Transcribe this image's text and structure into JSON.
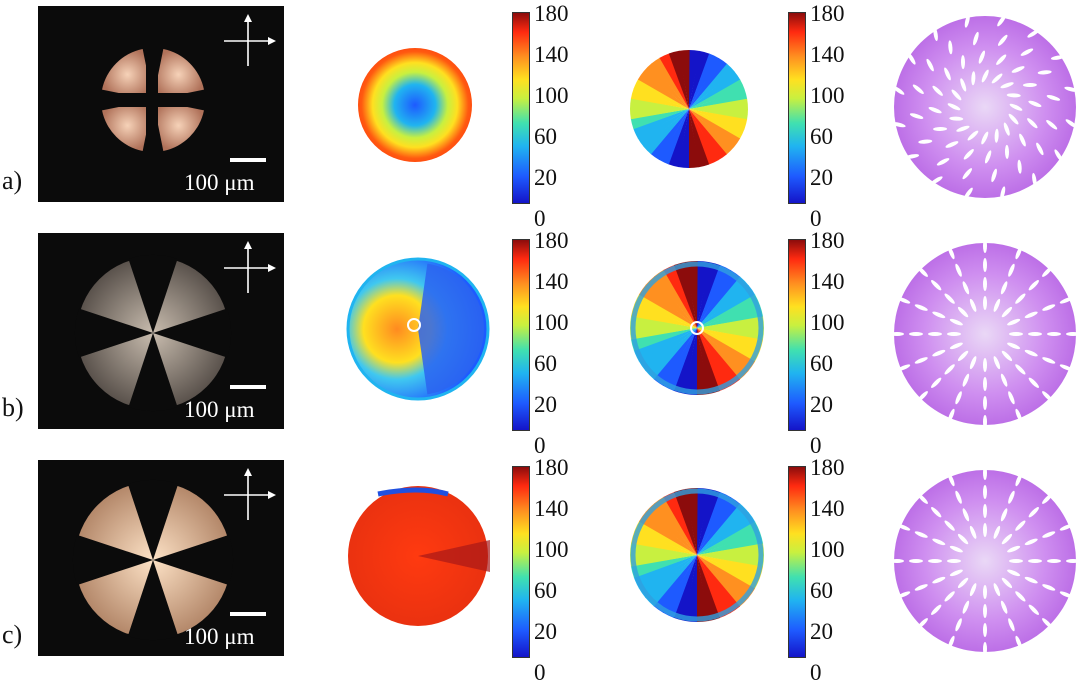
{
  "rows": [
    {
      "label": "a)",
      "scale": "100 μm"
    },
    {
      "label": "b)",
      "scale": "100 μm"
    },
    {
      "label": "c)",
      "scale": "100 μm"
    }
  ],
  "colorbar_ticks": [
    "180",
    "140",
    "100",
    "60",
    "20",
    "0"
  ],
  "colors": {
    "background": "#ffffff",
    "micrograph_bg": "#0b0b0b",
    "schematic_fill": "#c57ae8",
    "schematic_dash": "#ffffff",
    "colormap": [
      "#1414c8",
      "#1e5aff",
      "#20b4f0",
      "#40e0b0",
      "#c8f040",
      "#ffe020",
      "#ff9020",
      "#ff2a10",
      "#8c0c0c"
    ]
  }
}
